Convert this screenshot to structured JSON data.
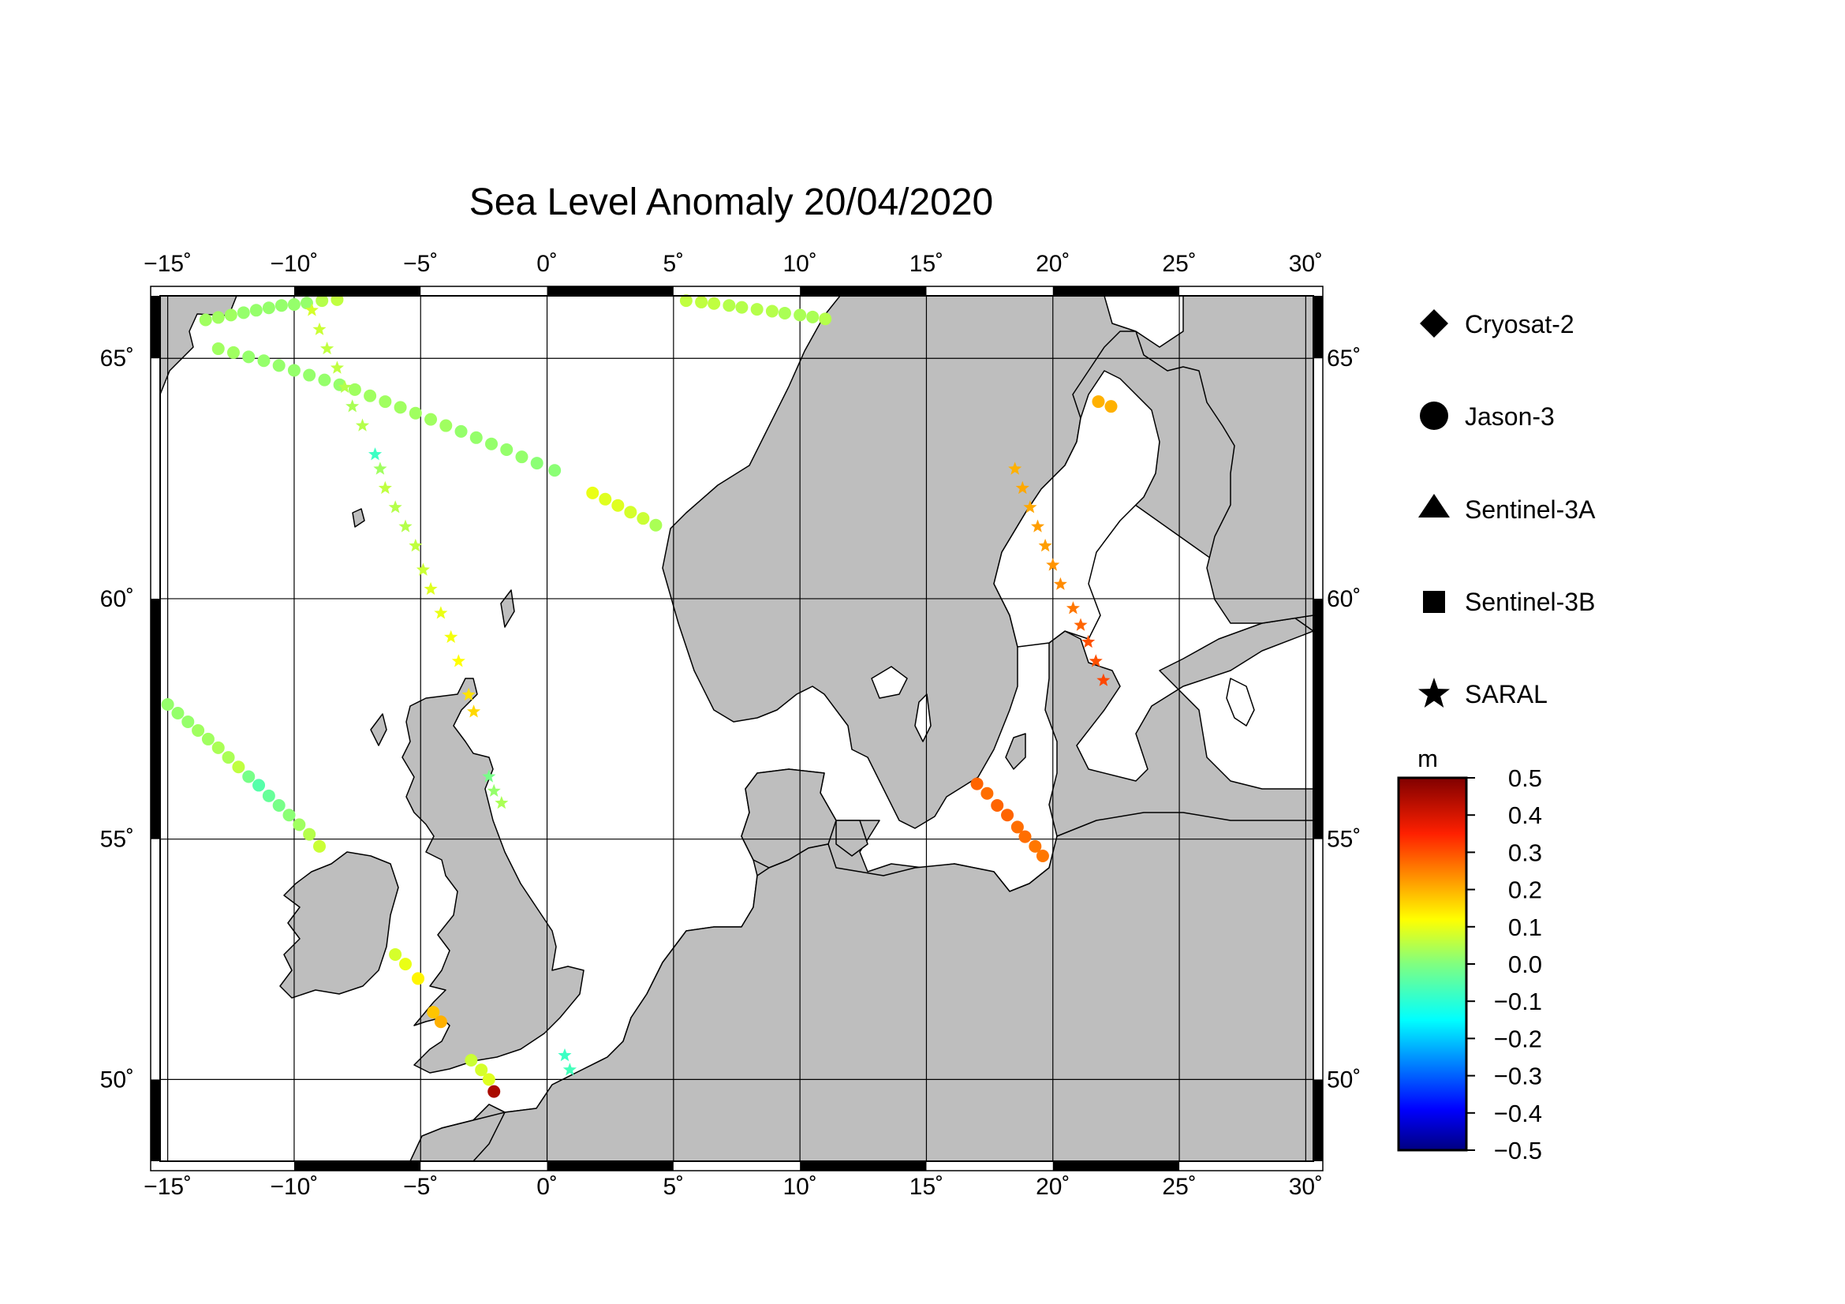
{
  "title": "Sea Level Anomaly 20/04/2020",
  "map": {
    "lon_range": [
      -15.3,
      30.3
    ],
    "lat_range": [
      48.3,
      66.3
    ],
    "lon_ticks": [
      "−15˚",
      "−10˚",
      "−5˚",
      "0˚",
      "5˚",
      "10˚",
      "15˚",
      "20˚",
      "25˚",
      "30˚"
    ],
    "lat_ticks": [
      "50˚",
      "55˚",
      "60˚",
      "65˚"
    ],
    "land_color": "#bebebe",
    "sea_color": "#ffffff"
  },
  "legend": {
    "items": [
      {
        "label": "Cryosat-2",
        "symbol": "diamond"
      },
      {
        "label": "Jason-3",
        "symbol": "circle"
      },
      {
        "label": "Sentinel-3A",
        "symbol": "triangle"
      },
      {
        "label": "Sentinel-3B",
        "symbol": "square"
      },
      {
        "label": "SARAL",
        "symbol": "star"
      }
    ]
  },
  "colorbar": {
    "unit": "m",
    "min": -0.5,
    "max": 0.5,
    "labels": [
      "0.5",
      "0.4",
      "0.3",
      "0.2",
      "0.1",
      "0.0",
      "−0.1",
      "−0.2",
      "−0.3",
      "−0.4",
      "−0.5"
    ]
  },
  "chart_data": {
    "type": "scatter",
    "title": "Sea Level Anomaly 20/04/2020",
    "xlabel": "",
    "ylabel": "",
    "xlim": [
      -15.3,
      30.3
    ],
    "ylim": [
      48.3,
      66.3
    ],
    "value_unit": "m",
    "tracks": [
      {
        "satellite": "Jason-3",
        "symbol": "circle",
        "points": [
          [
            -13.5,
            65.8,
            0.03
          ],
          [
            -13,
            65.85,
            0.03
          ],
          [
            -12.5,
            65.9,
            0.03
          ],
          [
            -12,
            65.95,
            0.02
          ],
          [
            -11.5,
            66,
            0.02
          ],
          [
            -11,
            66.05,
            0.02
          ],
          [
            -10.5,
            66.1,
            0.02
          ],
          [
            -10,
            66.12,
            0.02
          ],
          [
            -9.5,
            66.15,
            0.02
          ],
          [
            -8.9,
            66.2,
            0.05
          ],
          [
            -8.3,
            66.22,
            0.06
          ]
        ]
      },
      {
        "satellite": "Jason-3",
        "symbol": "circle",
        "points": [
          [
            5.5,
            66.2,
            0.06
          ],
          [
            6.1,
            66.17,
            0.06
          ],
          [
            6.6,
            66.14,
            0.06
          ],
          [
            7.2,
            66.1,
            0.05
          ],
          [
            7.7,
            66.06,
            0.05
          ],
          [
            8.3,
            66.02,
            0.05
          ],
          [
            8.9,
            65.98,
            0.05
          ],
          [
            9.4,
            65.94,
            0.04
          ],
          [
            10,
            65.9,
            0.04
          ],
          [
            10.5,
            65.86,
            0.04
          ],
          [
            11,
            65.82,
            0.05
          ]
        ]
      },
      {
        "satellite": "Jason-3",
        "symbol": "circle",
        "points": [
          [
            -13,
            65.2,
            0.03
          ],
          [
            -12.4,
            65.12,
            0.03
          ],
          [
            -11.8,
            65.03,
            0.02
          ],
          [
            -11.2,
            64.95,
            0.02
          ],
          [
            -10.6,
            64.85,
            0.02
          ],
          [
            -10,
            64.75,
            0.02
          ],
          [
            -9.4,
            64.65,
            0.02
          ],
          [
            -8.8,
            64.55,
            0.02
          ],
          [
            -8.2,
            64.45,
            0.02
          ],
          [
            -7.6,
            64.35,
            0.03
          ],
          [
            -7,
            64.22,
            0.03
          ],
          [
            -6.4,
            64.1,
            0.03
          ],
          [
            -5.8,
            63.98,
            0.03
          ],
          [
            -5.2,
            63.86,
            0.03
          ],
          [
            -4.6,
            63.73,
            0.03
          ],
          [
            -4,
            63.6,
            0.03
          ],
          [
            -3.4,
            63.48,
            0.02
          ],
          [
            -2.8,
            63.35,
            0.02
          ],
          [
            -2.2,
            63.22,
            0.02
          ],
          [
            -1.6,
            63.1,
            0.02
          ],
          [
            -1,
            62.95,
            0.02
          ],
          [
            -0.4,
            62.82,
            0.01
          ],
          [
            0.3,
            62.67,
            0.01
          ]
        ]
      },
      {
        "satellite": "Jason-3",
        "symbol": "circle",
        "points": [
          [
            1.8,
            62.2,
            0.1
          ],
          [
            2.3,
            62.07,
            0.09
          ],
          [
            2.8,
            61.94,
            0.09
          ],
          [
            3.3,
            61.8,
            0.08
          ],
          [
            3.8,
            61.67,
            0.07
          ],
          [
            4.3,
            61.53,
            0.04
          ]
        ]
      },
      {
        "satellite": "Jason-3",
        "symbol": "circle",
        "points": [
          [
            -15,
            57.8,
            0.02
          ],
          [
            -14.6,
            57.62,
            0.02
          ],
          [
            -14.2,
            57.44,
            0.02
          ],
          [
            -13.8,
            57.26,
            0.03
          ],
          [
            -13.4,
            57.08,
            0.03
          ],
          [
            -13,
            56.9,
            0.04
          ],
          [
            -12.6,
            56.7,
            0.04
          ],
          [
            -12.2,
            56.5,
            0.06
          ],
          [
            -11.8,
            56.3,
            -0.01
          ],
          [
            -11.4,
            56.12,
            -0.05
          ],
          [
            -11,
            55.9,
            -0.03
          ],
          [
            -10.6,
            55.7,
            -0.01
          ],
          [
            -10.2,
            55.5,
            0.01
          ],
          [
            -9.8,
            55.3,
            0.03
          ],
          [
            -9.4,
            55.1,
            0.05
          ],
          [
            -9,
            54.85,
            0.07
          ]
        ]
      },
      {
        "satellite": "Jason-3",
        "symbol": "circle",
        "points": [
          [
            -6,
            52.6,
            0.08
          ],
          [
            -5.6,
            52.4,
            0.1
          ],
          [
            -5.1,
            52.1,
            0.13
          ],
          [
            -4.5,
            51.4,
            0.18
          ],
          [
            -4.2,
            51.2,
            0.2
          ]
        ]
      },
      {
        "satellite": "Jason-3",
        "symbol": "circle",
        "points": [
          [
            -3,
            50.4,
            0.07
          ],
          [
            -2.6,
            50.2,
            0.08
          ],
          [
            -2.3,
            50.0,
            0.09
          ],
          [
            -2.1,
            49.75,
            0.45
          ]
        ]
      },
      {
        "satellite": "Jason-3",
        "symbol": "circle",
        "points": [
          [
            21.8,
            64.1,
            0.2
          ],
          [
            22.3,
            64.0,
            0.2
          ]
        ]
      },
      {
        "satellite": "Jason-3",
        "symbol": "circle",
        "points": [
          [
            17,
            56.15,
            0.28
          ],
          [
            17.4,
            55.95,
            0.27
          ],
          [
            17.8,
            55.7,
            0.28
          ],
          [
            18.2,
            55.5,
            0.28
          ],
          [
            18.6,
            55.25,
            0.27
          ],
          [
            18.9,
            55.05,
            0.27
          ],
          [
            19.3,
            54.85,
            0.26
          ],
          [
            19.6,
            54.65,
            0.26
          ]
        ]
      },
      {
        "satellite": "SARAL",
        "symbol": "star",
        "points": [
          [
            -9.3,
            66.0,
            0.08
          ],
          [
            -9.0,
            65.6,
            0.07
          ],
          [
            -8.7,
            65.2,
            0.06
          ],
          [
            -8.3,
            64.8,
            0.06
          ],
          [
            -8.0,
            64.4,
            0.05
          ],
          [
            -7.7,
            64.0,
            0.04
          ],
          [
            -7.3,
            63.6,
            0.05
          ],
          [
            -6.8,
            63.0,
            -0.08
          ],
          [
            -6.6,
            62.7,
            0.03
          ],
          [
            -6.4,
            62.3,
            0.06
          ],
          [
            -6.0,
            61.9,
            0.05
          ],
          [
            -5.6,
            61.5,
            0.05
          ],
          [
            -5.2,
            61.1,
            0.06
          ],
          [
            -4.9,
            60.6,
            0.07
          ],
          [
            -4.6,
            60.2,
            0.09
          ],
          [
            -4.2,
            59.7,
            0.1
          ],
          [
            -3.8,
            59.2,
            0.11
          ],
          [
            -3.5,
            58.7,
            0.12
          ],
          [
            -3.1,
            58.0,
            0.15
          ],
          [
            -2.9,
            57.65,
            0.16
          ]
        ]
      },
      {
        "satellite": "SARAL",
        "symbol": "star",
        "points": [
          [
            -2.3,
            56.3,
            -0.01
          ],
          [
            -2.1,
            56.0,
            0.02
          ],
          [
            -1.8,
            55.75,
            0.04
          ]
        ]
      },
      {
        "satellite": "SARAL",
        "symbol": "star",
        "points": [
          [
            0.7,
            50.5,
            -0.08
          ],
          [
            0.9,
            50.2,
            -0.07
          ]
        ]
      },
      {
        "satellite": "SARAL",
        "symbol": "star",
        "points": [
          [
            18.5,
            62.7,
            0.2
          ],
          [
            18.8,
            62.3,
            0.21
          ],
          [
            19.1,
            61.9,
            0.21
          ],
          [
            19.4,
            61.5,
            0.22
          ],
          [
            19.7,
            61.1,
            0.22
          ],
          [
            20.0,
            60.7,
            0.23
          ],
          [
            20.3,
            60.3,
            0.24
          ],
          [
            20.8,
            59.8,
            0.26
          ],
          [
            21.1,
            59.45,
            0.28
          ],
          [
            21.4,
            59.1,
            0.3
          ],
          [
            21.7,
            58.7,
            0.3
          ],
          [
            22.0,
            58.3,
            0.31
          ]
        ]
      }
    ]
  }
}
